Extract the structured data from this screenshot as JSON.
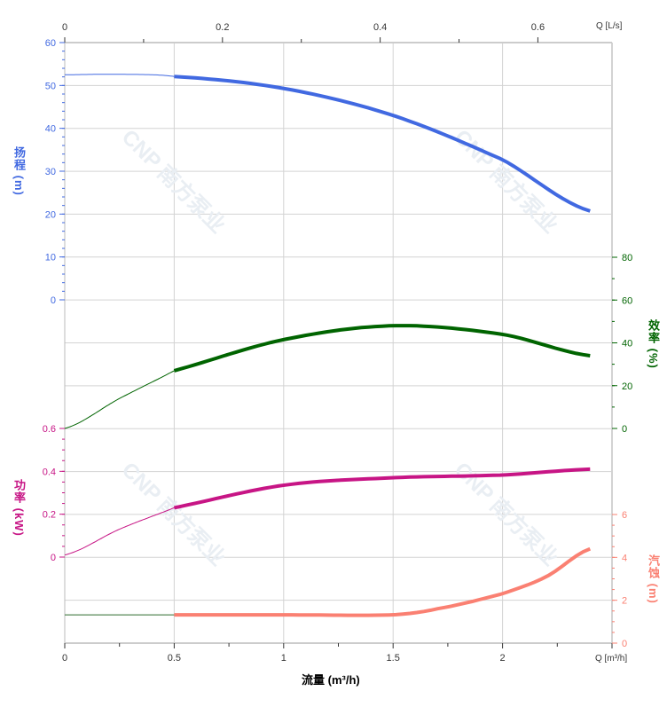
{
  "chart_data": {
    "type": "line",
    "watermark": "CNP 南方泵业",
    "x_axis": {
      "label": "流量 (m³/h)",
      "unit_label": "Q [m³/h]",
      "range": [
        0,
        2.5
      ],
      "ticks": [
        0,
        0.5,
        1,
        1.5,
        2
      ],
      "tick_labels": [
        "0",
        "0.5",
        "1",
        "1.5",
        "2"
      ]
    },
    "x2_axis": {
      "unit_label": "Q [L/s]",
      "range": [
        0,
        0.694
      ],
      "ticks": [
        0,
        0.2,
        0.4,
        0.6
      ],
      "tick_labels": [
        "0",
        "0.2",
        "0.4",
        "0.6"
      ]
    },
    "grid": true,
    "series": [
      {
        "name": "扬程",
        "unit": "(m)",
        "color": "#4169E1",
        "axis": "left-top",
        "range": [
          0,
          60
        ],
        "ticks": [
          0,
          10,
          20,
          30,
          40,
          50,
          60
        ],
        "x": [
          0,
          0.25,
          0.5,
          1.0,
          1.5,
          2.0,
          2.4
        ],
        "y": [
          52.5,
          52.6,
          52.1,
          49.3,
          43.0,
          32.7,
          20.7
        ]
      },
      {
        "name": "效率",
        "unit": "(%)",
        "color": "#006400",
        "axis": "right-upper",
        "range": [
          0,
          80
        ],
        "ticks": [
          0,
          20,
          40,
          60,
          80
        ],
        "x": [
          0,
          0.25,
          0.5,
          1.0,
          1.5,
          2.0,
          2.4
        ],
        "y": [
          0,
          14,
          27,
          41.5,
          48,
          44,
          34
        ]
      },
      {
        "name": "功率",
        "unit": "(kW)",
        "color": "#C71585",
        "axis": "left-lower",
        "range": [
          0,
          0.6
        ],
        "ticks": [
          0,
          0.2,
          0.4,
          0.6
        ],
        "x": [
          0,
          0.25,
          0.5,
          1.0,
          1.5,
          2.0,
          2.4
        ],
        "y": [
          0.01,
          0.13,
          0.23,
          0.335,
          0.37,
          0.383,
          0.41
        ]
      },
      {
        "name": "汽蚀",
        "unit": "(m)",
        "color": "#FA8072",
        "axis": "right-lower",
        "range": [
          0,
          6
        ],
        "ticks": [
          0,
          2,
          4,
          6
        ],
        "x": [
          0,
          0.5,
          1.0,
          1.5,
          1.7,
          2.0,
          2.2,
          2.4
        ],
        "y": [
          1.32,
          1.32,
          1.32,
          1.32,
          1.6,
          2.3,
          3.1,
          4.4
        ]
      }
    ],
    "operating_range": [
      0.5,
      2.4
    ]
  }
}
